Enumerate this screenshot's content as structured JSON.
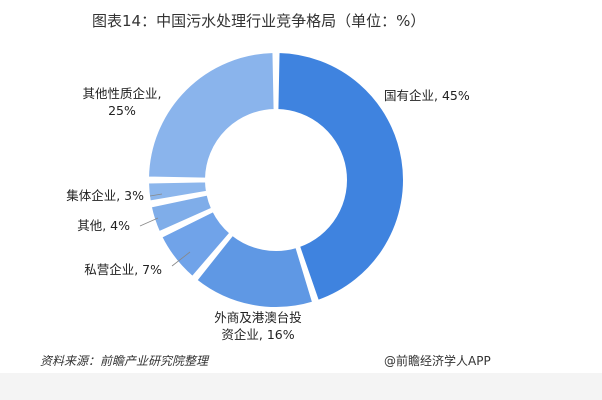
{
  "title": "图表14：中国污水处理行业竞争格局（单位：%）",
  "source": "资料来源：前瞻产业研究院整理",
  "brand": "@前瞻经济学人APP",
  "chart_data": {
    "type": "pie",
    "donut": true,
    "title": "图表14：中国污水处理行业竞争格局（单位：%）",
    "unit": "%",
    "slices": [
      {
        "label": "国有企业",
        "value": 45,
        "label_lines": [
          "国有企业, 45%"
        ],
        "color": "#3f83df"
      },
      {
        "label": "外商及港澳台投资企业",
        "value": 16,
        "label_lines": [
          "外商及港澳台投",
          "资企业, 16%"
        ],
        "color": "#5f98e4"
      },
      {
        "label": "私营企业",
        "value": 7,
        "label_lines": [
          "私营企业, 7%"
        ],
        "color": "#70a3e9"
      },
      {
        "label": "其他",
        "value": 4,
        "label_lines": [
          "其他, 4%"
        ],
        "color": "#7fade9"
      },
      {
        "label": "集体企业",
        "value": 3,
        "label_lines": [
          "集体企业, 3%"
        ],
        "color": "#8cb6ec"
      },
      {
        "label": "其他性质企业",
        "value": 25,
        "label_lines": [
          "其他性质企业,",
          "25%"
        ],
        "color": "#8ab4ec"
      }
    ]
  }
}
